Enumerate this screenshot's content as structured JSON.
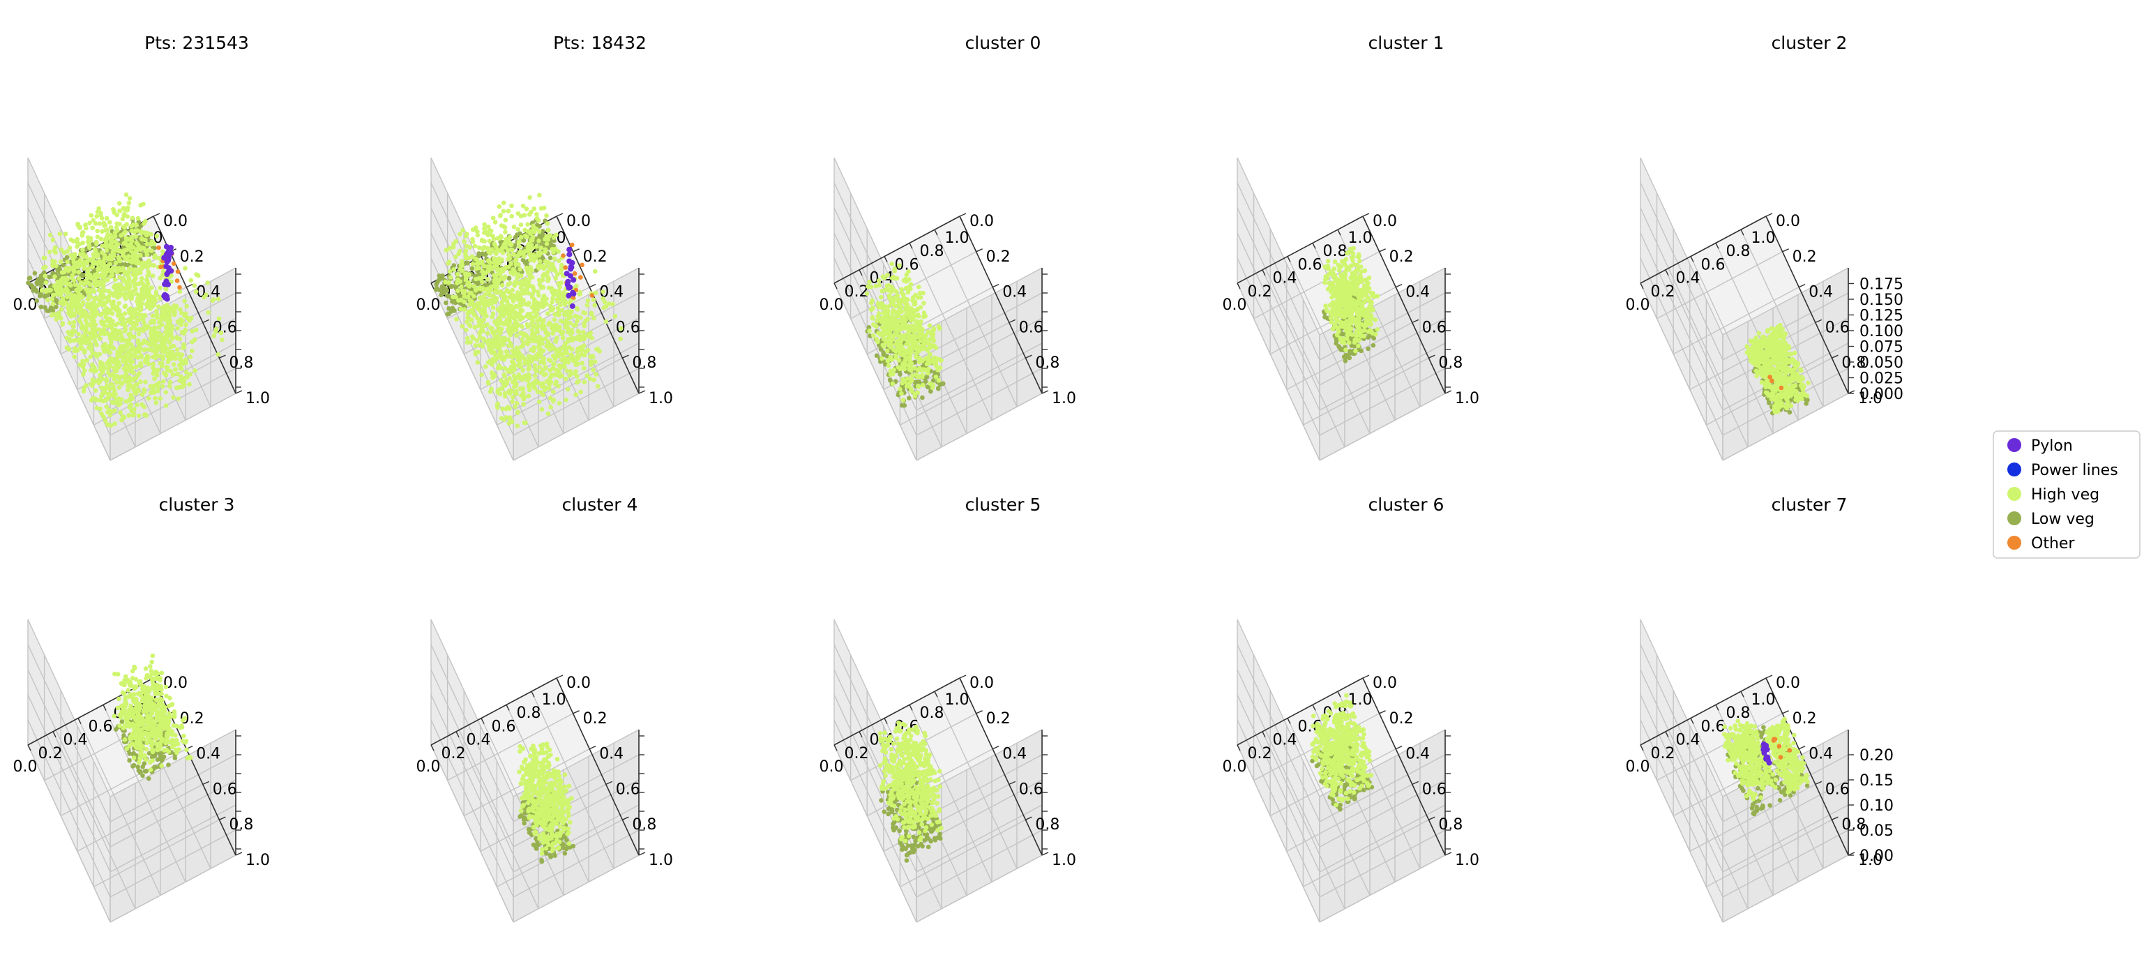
{
  "chart_data": {
    "type": "scatter",
    "projection": "3d",
    "legend": {
      "placement": "right",
      "entries": [
        {
          "name": "Pylon",
          "color": "#6a2bd9"
        },
        {
          "name": "Power lines",
          "color": "#1330e0"
        },
        {
          "name": "High veg",
          "color": "#cff56e"
        },
        {
          "name": "Low veg",
          "color": "#97b04f"
        },
        {
          "name": "Other",
          "color": "#f0882f"
        }
      ]
    },
    "x_ticks": [
      "0.0",
      "0.2",
      "0.4",
      "0.6",
      "0.8",
      "1.0"
    ],
    "y_ticks": [
      "0.0",
      "0.2",
      "0.4",
      "0.6",
      "0.8",
      "1.0"
    ],
    "panels": [
      {
        "title": "Pts: 231543",
        "xlim": [
          0,
          1
        ],
        "ylim": [
          0,
          1
        ],
        "z_ticks": [],
        "groups": [
          {
            "class": "High veg",
            "xr": [
              0.0,
              0.75
            ],
            "yr": [
              0.15,
              0.95
            ],
            "zr": [
              0.08,
              0.6
            ],
            "n": 1500
          },
          {
            "class": "Low veg",
            "xr": [
              0.0,
              0.9
            ],
            "yr": [
              0.0,
              0.2
            ],
            "zr": [
              0.0,
              0.07
            ],
            "n": 360
          },
          {
            "class": "Pylon",
            "xr": [
              0.78,
              0.82
            ],
            "yr": [
              0.45,
              0.5
            ],
            "zr": [
              0.08,
              0.55
            ],
            "n": 30
          },
          {
            "class": "High veg",
            "xr": [
              0.85,
              1.0
            ],
            "yr": [
              0.55,
              0.95
            ],
            "zr": [
              0.25,
              0.55
            ],
            "n": 20
          },
          {
            "class": "Other",
            "xr": [
              0.85,
              1.0
            ],
            "yr": [
              0.2,
              0.45
            ],
            "zr": [
              0.0,
              0.1
            ],
            "n": 12
          }
        ]
      },
      {
        "title": "Pts: 18432",
        "xlim": [
          0,
          1
        ],
        "ylim": [
          0,
          1
        ],
        "z_ticks": [],
        "groups": [
          {
            "class": "High veg",
            "xr": [
              0.0,
              0.75
            ],
            "yr": [
              0.15,
              0.95
            ],
            "zr": [
              0.08,
              0.6
            ],
            "n": 1300
          },
          {
            "class": "Low veg",
            "xr": [
              0.0,
              0.9
            ],
            "yr": [
              0.0,
              0.2
            ],
            "zr": [
              0.0,
              0.07
            ],
            "n": 320
          },
          {
            "class": "Pylon",
            "xr": [
              0.78,
              0.82
            ],
            "yr": [
              0.45,
              0.5
            ],
            "zr": [
              0.08,
              0.5
            ],
            "n": 18
          },
          {
            "class": "High veg",
            "xr": [
              0.85,
              1.0
            ],
            "yr": [
              0.55,
              0.95
            ],
            "zr": [
              0.25,
              0.55
            ],
            "n": 16
          },
          {
            "class": "Other",
            "xr": [
              0.85,
              1.0
            ],
            "yr": [
              0.2,
              0.45
            ],
            "zr": [
              0.0,
              0.1
            ],
            "n": 10
          }
        ]
      },
      {
        "title": "cluster 0",
        "xlim": [
          0,
          1
        ],
        "ylim": [
          0,
          1
        ],
        "z_ticks": [],
        "groups": [
          {
            "class": "High veg",
            "xr": [
              0.05,
              0.38
            ],
            "yr": [
              0.3,
              0.75
            ],
            "zr": [
              0.05,
              0.45
            ],
            "n": 520
          },
          {
            "class": "Low veg",
            "xr": [
              0.05,
              0.38
            ],
            "yr": [
              0.3,
              0.75
            ],
            "zr": [
              0.0,
              0.06
            ],
            "n": 170
          }
        ]
      },
      {
        "title": "cluster 1",
        "xlim": [
          0,
          1
        ],
        "ylim": [
          0,
          1
        ],
        "z_ticks": [],
        "groups": [
          {
            "class": "High veg",
            "xr": [
              0.45,
              0.72
            ],
            "yr": [
              0.35,
              0.62
            ],
            "zr": [
              0.04,
              0.42
            ],
            "n": 480
          },
          {
            "class": "Low veg",
            "xr": [
              0.45,
              0.72
            ],
            "yr": [
              0.35,
              0.62
            ],
            "zr": [
              0.0,
              0.05
            ],
            "n": 150
          }
        ]
      },
      {
        "title": "cluster 2",
        "xlim": [
          0,
          1
        ],
        "ylim": [
          0,
          1
        ],
        "z_ticks": [
          "0.000",
          "0.025",
          "0.050",
          "0.075",
          "0.100",
          "0.125",
          "0.150",
          "0.175"
        ],
        "zlim": [
          0,
          0.2
        ],
        "groups": [
          {
            "class": "High veg",
            "xr": [
              0.45,
              0.72
            ],
            "yr": [
              0.6,
              0.95
            ],
            "zr": [
              0.03,
              0.17
            ],
            "n": 520
          },
          {
            "class": "Low veg",
            "xr": [
              0.45,
              0.72
            ],
            "yr": [
              0.6,
              0.95
            ],
            "zr": [
              0.0,
              0.03
            ],
            "n": 170
          },
          {
            "class": "Other",
            "xr": [
              0.45,
              0.55
            ],
            "yr": [
              0.8,
              0.9
            ],
            "zr": [
              0.12,
              0.16
            ],
            "n": 3
          }
        ]
      },
      {
        "title": "cluster 3",
        "xlim": [
          0,
          1
        ],
        "ylim": [
          0,
          1
        ],
        "z_ticks": [],
        "groups": [
          {
            "class": "High veg",
            "xr": [
              0.6,
              0.92
            ],
            "yr": [
              0.12,
              0.45
            ],
            "zr": [
              0.05,
              0.42
            ],
            "n": 460
          },
          {
            "class": "Low veg",
            "xr": [
              0.6,
              0.92
            ],
            "yr": [
              0.12,
              0.45
            ],
            "zr": [
              0.0,
              0.06
            ],
            "n": 160
          },
          {
            "class": "High veg",
            "xr": [
              0.92,
              0.98
            ],
            "yr": [
              0.4,
              0.5
            ],
            "zr": [
              0.05,
              0.3
            ],
            "n": 15
          }
        ]
      },
      {
        "title": "cluster 4",
        "xlim": [
          0,
          1
        ],
        "ylim": [
          0,
          1
        ],
        "z_ticks": [],
        "groups": [
          {
            "class": "High veg",
            "xr": [
              0.35,
              0.6
            ],
            "yr": [
              0.5,
              0.82
            ],
            "zr": [
              0.06,
              0.5
            ],
            "n": 480
          },
          {
            "class": "Low veg",
            "xr": [
              0.35,
              0.6
            ],
            "yr": [
              0.5,
              0.82
            ],
            "zr": [
              0.0,
              0.07
            ],
            "n": 160
          }
        ]
      },
      {
        "title": "cluster 5",
        "xlim": [
          0,
          1
        ],
        "ylim": [
          0,
          1
        ],
        "z_ticks": [],
        "groups": [
          {
            "class": "High veg",
            "xr": [
              0.12,
              0.42
            ],
            "yr": [
              0.35,
              0.7
            ],
            "zr": [
              0.07,
              0.55
            ],
            "n": 500
          },
          {
            "class": "Low veg",
            "xr": [
              0.12,
              0.42
            ],
            "yr": [
              0.35,
              0.7
            ],
            "zr": [
              0.0,
              0.08
            ],
            "n": 200
          }
        ]
      },
      {
        "title": "cluster 6",
        "xlim": [
          0,
          1
        ],
        "ylim": [
          0,
          1
        ],
        "z_ticks": [],
        "groups": [
          {
            "class": "High veg",
            "xr": [
              0.42,
              0.72
            ],
            "yr": [
              0.25,
              0.55
            ],
            "zr": [
              0.05,
              0.4
            ],
            "n": 480
          },
          {
            "class": "Low veg",
            "xr": [
              0.42,
              0.72
            ],
            "yr": [
              0.25,
              0.55
            ],
            "zr": [
              0.0,
              0.06
            ],
            "n": 170
          }
        ]
      },
      {
        "title": "cluster 7",
        "xlim": [
          0,
          1
        ],
        "ylim": [
          0,
          1
        ],
        "z_ticks": [
          "0.00",
          "0.05",
          "0.10",
          "0.15",
          "0.20"
        ],
        "zlim": [
          0,
          0.25
        ],
        "groups": [
          {
            "class": "High veg",
            "xr": [
              0.5,
              0.72
            ],
            "yr": [
              0.22,
              0.55
            ],
            "zr": [
              0.02,
              0.2
            ],
            "n": 300
          },
          {
            "class": "High veg",
            "xr": [
              0.78,
              0.95
            ],
            "yr": [
              0.3,
              0.6
            ],
            "zr": [
              0.02,
              0.17
            ],
            "n": 260
          },
          {
            "class": "Low veg",
            "xr": [
              0.5,
              0.95
            ],
            "yr": [
              0.22,
              0.6
            ],
            "zr": [
              0.0,
              0.03
            ],
            "n": 180
          },
          {
            "class": "Pylon",
            "xr": [
              0.72,
              0.76
            ],
            "yr": [
              0.38,
              0.42
            ],
            "zr": [
              0.04,
              0.16
            ],
            "n": 12
          },
          {
            "class": "Other",
            "xr": [
              0.85,
              0.95
            ],
            "yr": [
              0.3,
              0.4
            ],
            "zr": [
              0.0,
              0.04
            ],
            "n": 6
          }
        ]
      }
    ]
  }
}
